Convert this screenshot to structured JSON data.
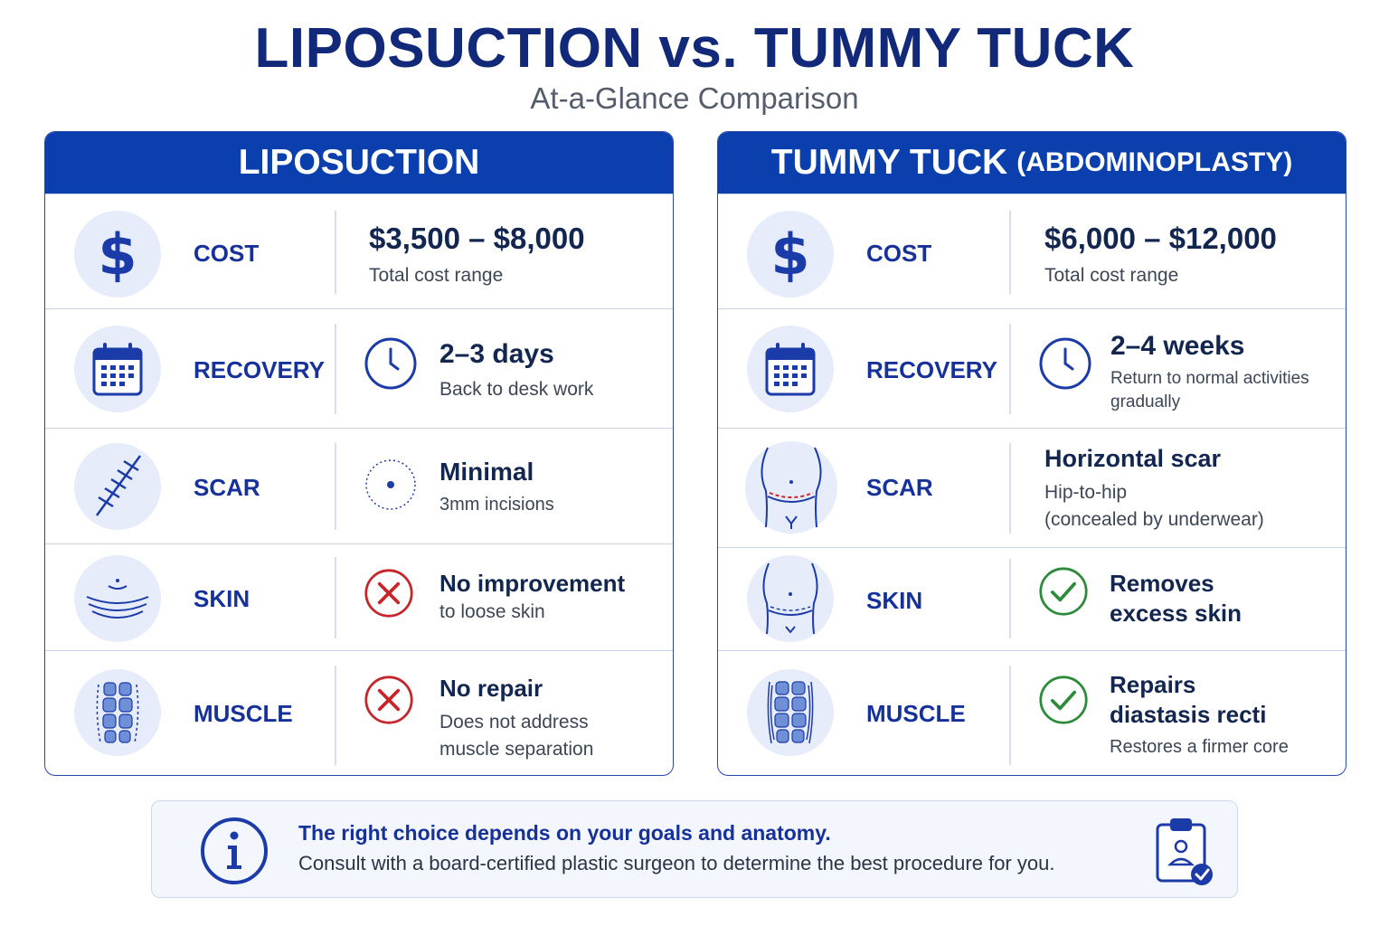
{
  "title": "LIPOSUCTION vs. TUMMY TUCK",
  "subtitle": "At-a-Glance Comparison",
  "colors": {
    "brand": "#0b3fad",
    "accent": "#16329a",
    "negative": "#c8252b",
    "positive": "#2e8b3c"
  },
  "liposuction": {
    "header": "LIPOSUCTION",
    "cost": {
      "label": "COST",
      "value": "$3,500 – $8,000",
      "detail": "Total cost range",
      "icon": "dollar-icon"
    },
    "recovery": {
      "label": "RECOVERY",
      "value": "2–3 days",
      "detail": "Back to desk work",
      "icon": "calendar-icon",
      "status_icon": "clock-icon"
    },
    "scar": {
      "label": "SCAR",
      "value": "Minimal",
      "detail": "3mm incisions",
      "icon": "incision-icon",
      "status_icon": "small-dot-icon"
    },
    "skin": {
      "label": "SKIN",
      "value": "No improvement",
      "detail": "to loose skin",
      "icon": "skin-icon",
      "status_icon": "x-icon"
    },
    "muscle": {
      "label": "MUSCLE",
      "value": "No repair",
      "detail_1": "Does not address",
      "detail_2": "muscle separation",
      "icon": "abdominal-muscle-icon",
      "status_icon": "x-icon"
    }
  },
  "tummy_tuck": {
    "header": "TUMMY TUCK",
    "header_sub": "(ABDOMINOPLASTY)",
    "cost": {
      "label": "COST",
      "value": "$6,000 – $12,000",
      "detail": "Total cost range",
      "icon": "dollar-icon"
    },
    "recovery": {
      "label": "RECOVERY",
      "value": "2–4 weeks",
      "detail_1": "Return to normal activities",
      "detail_2": "gradually",
      "icon": "calendar-icon",
      "status_icon": "clock-icon"
    },
    "scar": {
      "label": "SCAR",
      "value": "Horizontal scar",
      "detail_1": "Hip-to-hip",
      "detail_2": "(concealed by underwear)",
      "icon": "torso-scar-icon"
    },
    "skin": {
      "label": "SKIN",
      "value_1": "Removes",
      "value_2": "excess skin",
      "icon": "torso-icon",
      "status_icon": "check-icon"
    },
    "muscle": {
      "label": "MUSCLE",
      "value_1": "Repairs",
      "value_2": "diastasis recti",
      "detail": "Restores a firmer core",
      "icon": "repaired-muscle-icon",
      "status_icon": "check-icon"
    }
  },
  "note": {
    "title": "The right choice depends on your goals and anatomy.",
    "text": "Consult with a board-certified plastic surgeon to determine the best procedure for you.",
    "icon": "info-icon",
    "badge_icon": "clipboard-check-icon"
  }
}
